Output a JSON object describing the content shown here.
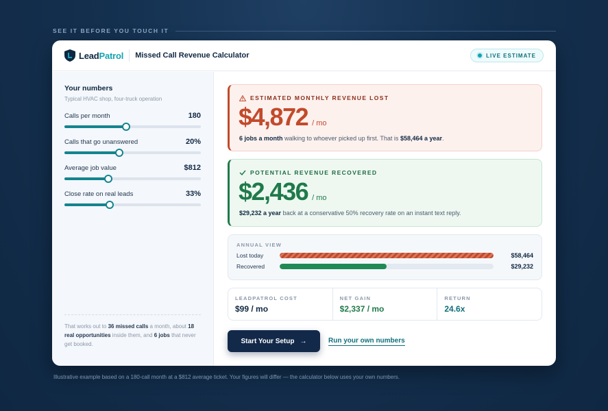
{
  "eyebrow": "SEE IT BEFORE YOU TOUCH IT",
  "header": {
    "brand_lead": "Lead",
    "brand_patrol": "Patrol",
    "title": "Missed Call Revenue Calculator",
    "badge": "LIVE ESTIMATE"
  },
  "inputs": {
    "heading": "Your numbers",
    "subtitle": "Typical HVAC shop, four-truck operation",
    "sliders": [
      {
        "label": "Calls per month",
        "value": "180",
        "level": 0.45
      },
      {
        "label": "Calls that go unanswered",
        "value": "20%",
        "level": 0.4
      },
      {
        "label": "Average job value",
        "value": "$812",
        "level": 0.32
      },
      {
        "label": "Close rate on real leads",
        "value": "33%",
        "level": 0.33
      }
    ],
    "note": {
      "t1": "That works out to ",
      "b1": "36 missed calls",
      "t2": " a month, about ",
      "b2": "18 real opportunities",
      "t3": " inside them, and ",
      "b3": "6 jobs",
      "t4": " that never get booked."
    }
  },
  "lost": {
    "title": "ESTIMATED MONTHLY REVENUE LOST",
    "amount": "$4,872",
    "per": "/ mo",
    "desc_bold": "6 jobs a month",
    "desc_mid": " walking to whoever picked up first. That is ",
    "desc_bold2": "$58,464 a year",
    "desc_end": "."
  },
  "recovered": {
    "title": "POTENTIAL REVENUE RECOVERED",
    "amount": "$2,436",
    "per": "/ mo",
    "desc_bold": "$29,232 a year",
    "desc_rest": " back at a conservative 50% recovery rate on an instant text reply."
  },
  "annual": {
    "label": "ANNUAL VIEW",
    "rows": [
      {
        "label": "Lost today",
        "value": "$58,464",
        "level": 1.0
      },
      {
        "label": "Recovered",
        "value": "$29,232",
        "level": 0.5
      }
    ]
  },
  "stats": [
    {
      "label": "LEADPATROL COST",
      "value": "$99 / mo"
    },
    {
      "label": "NET GAIN",
      "value": "$2,337 / mo"
    },
    {
      "label": "RETURN",
      "value": "24.6x"
    }
  ],
  "cta": {
    "primary": "Start Your Setup",
    "arrow": "→",
    "secondary": "Run your own numbers"
  },
  "footnote": "Illustrative example based on a 180-call month at a $812 average ticket. Your figures will differ — the calculator below uses your own numbers.",
  "colors": {
    "lost": "#c24a2b",
    "recovered": "#1f7a4a",
    "accent": "#13a3b3",
    "navy": "#13294a"
  }
}
